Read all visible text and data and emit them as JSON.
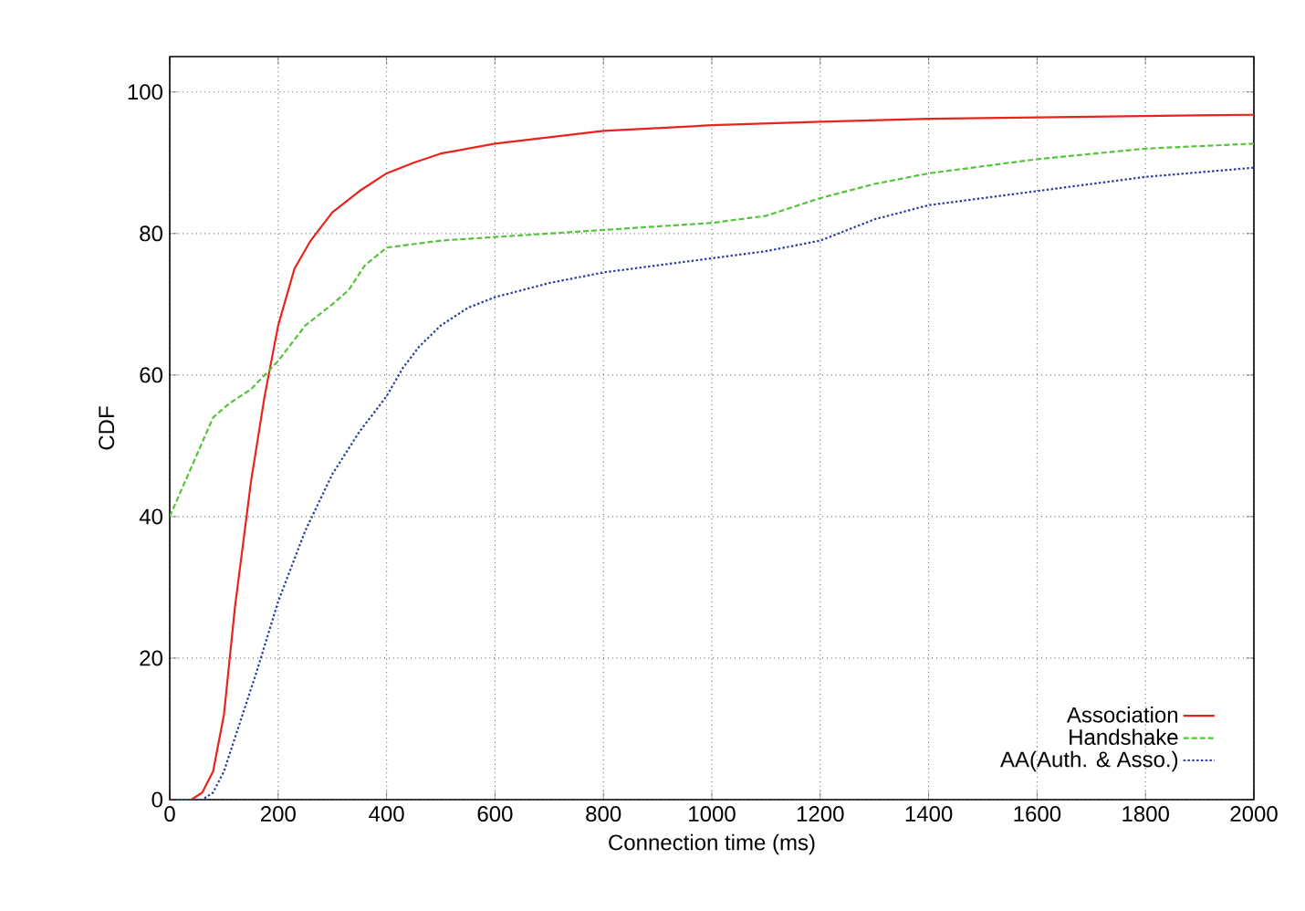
{
  "chart_data": {
    "type": "line",
    "xlabel": "Connection time (ms)",
    "ylabel": "CDF",
    "xlim": [
      0,
      2000
    ],
    "ylim": [
      0,
      105
    ],
    "xticks": [
      0,
      200,
      400,
      600,
      800,
      1000,
      1200,
      1400,
      1600,
      1800,
      2000
    ],
    "yticks": [
      0,
      20,
      40,
      60,
      80,
      100
    ],
    "grid": true,
    "legend": "bottom right",
    "marker": "none",
    "series": [
      {
        "name": "Association",
        "color": "#e8241d",
        "line_style": "solid",
        "x": [
          0,
          40,
          60,
          80,
          100,
          120,
          150,
          175,
          200,
          230,
          260,
          300,
          350,
          400,
          450,
          500,
          600,
          800,
          1000,
          1200,
          1400,
          1600,
          2000
        ],
        "values": [
          0,
          0,
          1,
          4,
          12,
          27,
          45,
          57,
          67,
          75,
          79,
          83,
          86,
          88.5,
          90,
          91.3,
          92.7,
          94.5,
          95.3,
          95.8,
          96.2,
          96.4,
          96.8
        ]
      },
      {
        "name": "Handshake",
        "color": "#55c43c",
        "line_style": "dashed",
        "x": [
          0,
          40,
          80,
          110,
          150,
          200,
          250,
          300,
          330,
          360,
          400,
          500,
          600,
          800,
          1000,
          1100,
          1200,
          1300,
          1400,
          1600,
          1800,
          2000
        ],
        "values": [
          40,
          47,
          54,
          56,
          58,
          62,
          67,
          70,
          72,
          75.5,
          78,
          79,
          79.5,
          80.5,
          81.5,
          82.5,
          85,
          87,
          88.5,
          90.5,
          92,
          92.7
        ]
      },
      {
        "name": "AA(Auth. & Asso.)",
        "color": "#2a3ca0",
        "line_style": "dotted",
        "x": [
          0,
          60,
          80,
          100,
          130,
          160,
          200,
          250,
          300,
          350,
          400,
          430,
          460,
          500,
          550,
          600,
          700,
          800,
          1000,
          1100,
          1200,
          1300,
          1400,
          1600,
          1800,
          2000
        ],
        "values": [
          0,
          0,
          1,
          4,
          11,
          18,
          28,
          38,
          46,
          52,
          57,
          61,
          64,
          67,
          69.5,
          71,
          73,
          74.5,
          76.5,
          77.5,
          79,
          82,
          84,
          86,
          88,
          89.3
        ]
      }
    ]
  }
}
